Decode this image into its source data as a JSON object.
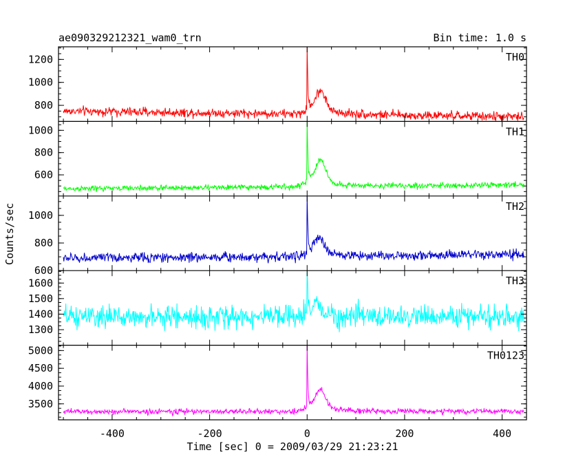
{
  "chart_data": {
    "type": "line",
    "title": "ae090329212321_wam0_trn",
    "bin_time_label": "Bin time: 1.0 s",
    "xlabel": "Time [sec] 0 = 2009/03/29 21:23:21",
    "ylabel": "Counts/sec",
    "xlim": [
      -510,
      450
    ],
    "x_ticks": [
      -400,
      -200,
      0,
      200,
      400
    ],
    "x_range": [
      -500,
      445
    ],
    "series": [
      {
        "name": "TH0",
        "color": "#ff0000",
        "ylim": [
          660,
          1310
        ],
        "y_ticks": [
          800,
          1000,
          1200
        ],
        "baseline_start": 750,
        "baseline_end": 700,
        "noise": 28,
        "peak": 1300,
        "bump_value": 960,
        "bump_time": 28
      },
      {
        "name": "TH1",
        "color": "#00ff00",
        "ylim": [
          410,
          1080
        ],
        "y_ticks": [
          600,
          800,
          1000
        ],
        "baseline_start": 475,
        "baseline_end": 510,
        "noise": 18,
        "peak": 1050,
        "bump_value": 720,
        "bump_time": 28
      },
      {
        "name": "TH2",
        "color": "#0000cc",
        "ylim": [
          600,
          1140
        ],
        "y_ticks": [
          600,
          800,
          1000
        ],
        "baseline_start": 690,
        "baseline_end": 715,
        "noise": 25,
        "peak": 1130,
        "bump_value": 820,
        "bump_time": 25
      },
      {
        "name": "TH3",
        "color": "#00ffff",
        "ylim": [
          1200,
          1680
        ],
        "y_ticks": [
          1300,
          1400,
          1500,
          1600
        ],
        "baseline_start": 1380,
        "baseline_end": 1385,
        "noise": 50,
        "peak": 1680,
        "bump_value": 1460,
        "bump_time": 20
      },
      {
        "name": "TH0123",
        "color": "#ff00ff",
        "ylim": [
          3050,
          5150
        ],
        "y_ticks": [
          3500,
          4000,
          4500,
          5000
        ],
        "baseline_start": 3280,
        "baseline_end": 3290,
        "noise": 55,
        "peak": 5000,
        "bump_value": 3900,
        "bump_time": 28
      }
    ]
  }
}
